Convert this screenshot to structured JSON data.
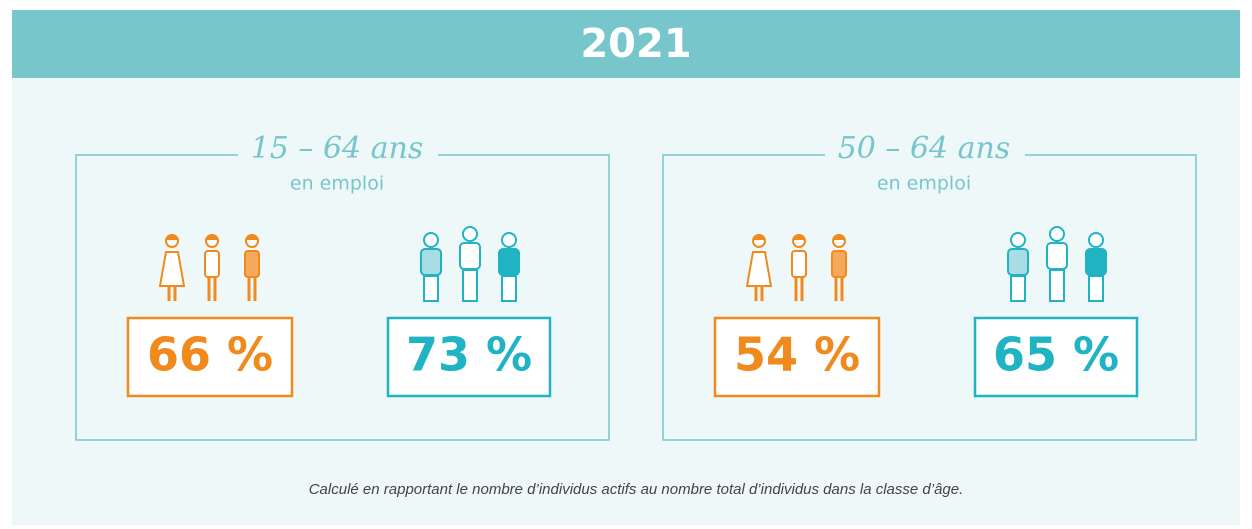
{
  "header": {
    "title": "2021"
  },
  "panels": [
    {
      "title": "15 – 64 ans",
      "subtitle": "en emploi",
      "women": "66 %",
      "men": "73 %"
    },
    {
      "title": "50 – 64 ans",
      "subtitle": "en emploi",
      "women": "54 %",
      "men": "65 %"
    }
  ],
  "footnote": "Calculé en rapportant le nombre d’individus actifs au nombre total d’individus dans la classe d’âge."
}
